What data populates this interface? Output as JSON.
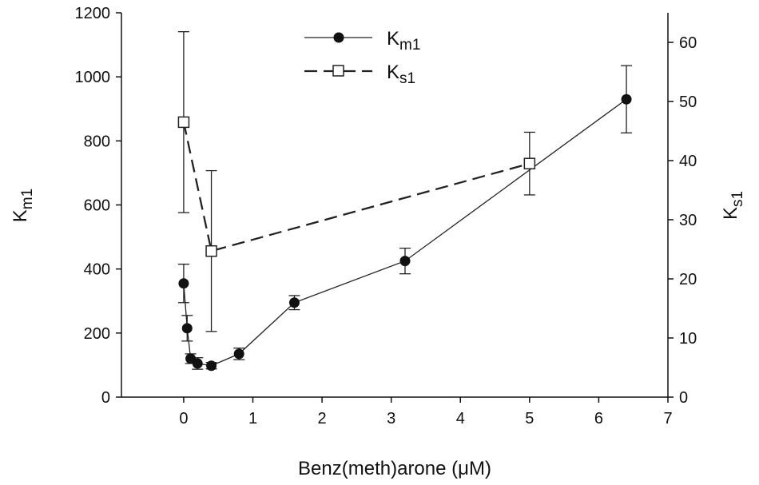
{
  "chart_data": {
    "type": "line",
    "xlabel": "Benz(meth)arone (μM)",
    "ylabel_left_base": "K",
    "ylabel_left_sub": "m1",
    "ylabel_right_base": "K",
    "ylabel_right_sub": "s1",
    "xlim": [
      -0.9,
      7
    ],
    "ylim_left": [
      0,
      1200
    ],
    "ylim_right": [
      0,
      65
    ],
    "x_ticks": [
      0,
      1,
      2,
      3,
      4,
      5,
      6,
      7
    ],
    "y_left_ticks": [
      0,
      200,
      400,
      600,
      800,
      1000,
      1200
    ],
    "y_right_ticks": [
      0,
      10,
      20,
      30,
      40,
      50,
      60
    ],
    "grid": false,
    "legend_position": "top-center",
    "series": [
      {
        "name_base": "K",
        "name_sub": "m1",
        "axis": "left",
        "marker": "filled-circle",
        "line": "solid",
        "x": [
          0,
          0.05,
          0.1,
          0.2,
          0.4,
          0.8,
          1.6,
          3.2,
          6.4
        ],
        "y": [
          355,
          215,
          120,
          105,
          98,
          135,
          295,
          425,
          930
        ],
        "err": [
          60,
          40,
          15,
          18,
          10,
          18,
          22,
          40,
          105
        ]
      },
      {
        "name_base": "K",
        "name_sub": "s1",
        "axis": "right",
        "marker": "open-square",
        "line": "dashed",
        "x": [
          0,
          0.4,
          5
        ],
        "y": [
          46.5,
          24.7,
          39.5
        ],
        "err": [
          15.3,
          13.6,
          5.3
        ]
      }
    ]
  }
}
